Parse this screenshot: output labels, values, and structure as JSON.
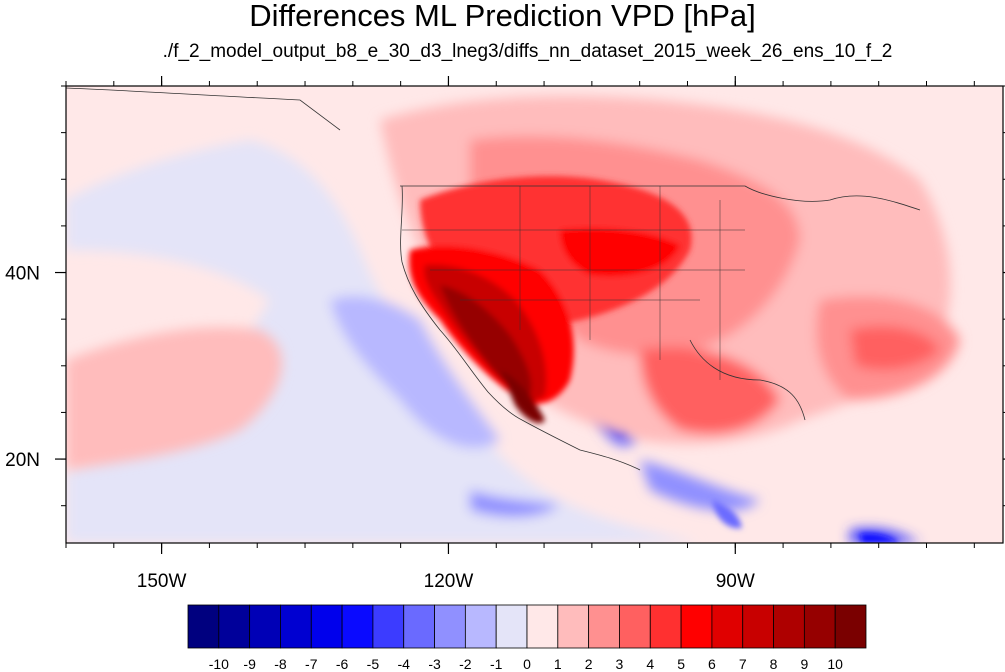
{
  "title": "Differences ML Prediction VPD [hPa]",
  "subtitle": "./f_2_model_output_b8_e_30_d3_lneg3/diffs_nn_dataset_2015_week_26_ens_10_f_2",
  "map": {
    "lon_range": [
      -160,
      -62
    ],
    "lat_range": [
      11,
      60
    ],
    "lon_ticks": [
      {
        "value": -150,
        "label": "150W"
      },
      {
        "value": -120,
        "label": "120W"
      },
      {
        "value": -90,
        "label": "90W"
      }
    ],
    "lat_ticks": [
      {
        "value": 40,
        "label": "40N"
      },
      {
        "value": 20,
        "label": "20N"
      }
    ],
    "field": "VPD difference",
    "units": "hPa"
  },
  "colorbar": {
    "labels": [
      "-10",
      "-9",
      "-8",
      "-7",
      "-6",
      "-5",
      "-4",
      "-3",
      "-2",
      "-1",
      "0",
      "1",
      "2",
      "3",
      "4",
      "5",
      "6",
      "7",
      "8",
      "9",
      "10"
    ],
    "colors": [
      "#00007f",
      "#00009a",
      "#0000b6",
      "#0000d1",
      "#0000ec",
      "#0a0aff",
      "#3c3cff",
      "#6a6aff",
      "#9090ff",
      "#b8b8ff",
      "#e4e4f8",
      "#ffe8e8",
      "#ffbcbc",
      "#ff9090",
      "#ff6060",
      "#ff3030",
      "#ff0000",
      "#e00000",
      "#c80000",
      "#ae0000",
      "#960000",
      "#7a0000"
    ]
  }
}
